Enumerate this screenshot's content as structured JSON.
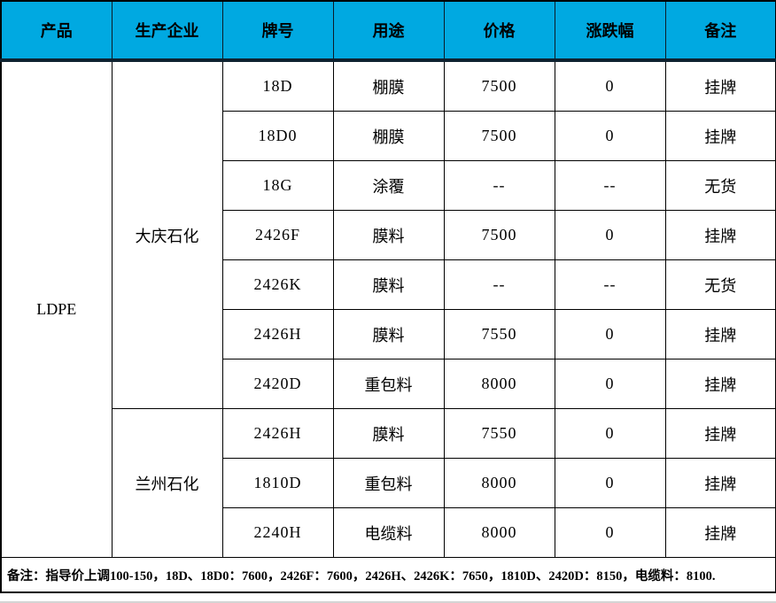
{
  "table": {
    "headers": [
      "产品",
      "生产企业",
      "牌号",
      "用途",
      "价格",
      "涨跌幅",
      "备注"
    ],
    "product": "LDPE",
    "groups": [
      {
        "producer": "大庆石化",
        "rows": [
          {
            "grade": "18D",
            "use": "棚膜",
            "price": "7500",
            "change": "0",
            "note": "挂牌"
          },
          {
            "grade": "18D0",
            "use": "棚膜",
            "price": "7500",
            "change": "0",
            "note": "挂牌"
          },
          {
            "grade": "18G",
            "use": "涂覆",
            "price": "--",
            "change": "--",
            "note": "无货"
          },
          {
            "grade": "2426F",
            "use": "膜料",
            "price": "7500",
            "change": "0",
            "note": "挂牌"
          },
          {
            "grade": "2426K",
            "use": "膜料",
            "price": "--",
            "change": "--",
            "note": "无货"
          },
          {
            "grade": "2426H",
            "use": "膜料",
            "price": "7550",
            "change": "0",
            "note": "挂牌"
          },
          {
            "grade": "2420D",
            "use": "重包料",
            "price": "8000",
            "change": "0",
            "note": "挂牌"
          }
        ]
      },
      {
        "producer": "兰州石化",
        "rows": [
          {
            "grade": "2426H",
            "use": "膜料",
            "price": "7550",
            "change": "0",
            "note": "挂牌"
          },
          {
            "grade": "1810D",
            "use": "重包料",
            "price": "8000",
            "change": "0",
            "note": "挂牌"
          },
          {
            "grade": "2240H",
            "use": "电缆料",
            "price": "8000",
            "change": "0",
            "note": "挂牌"
          }
        ]
      }
    ],
    "footnote": "备注：指导价上调100-150，18D、18D0：7600，2426F：7600，2426H、2426K：7650，1810D、2420D：8150，电缆料：8100."
  },
  "colors": {
    "header_bg": "#00a9e1",
    "header_divider": "#0f2230",
    "border": "#000000",
    "bottom_rule": "#d4d4d4"
  }
}
